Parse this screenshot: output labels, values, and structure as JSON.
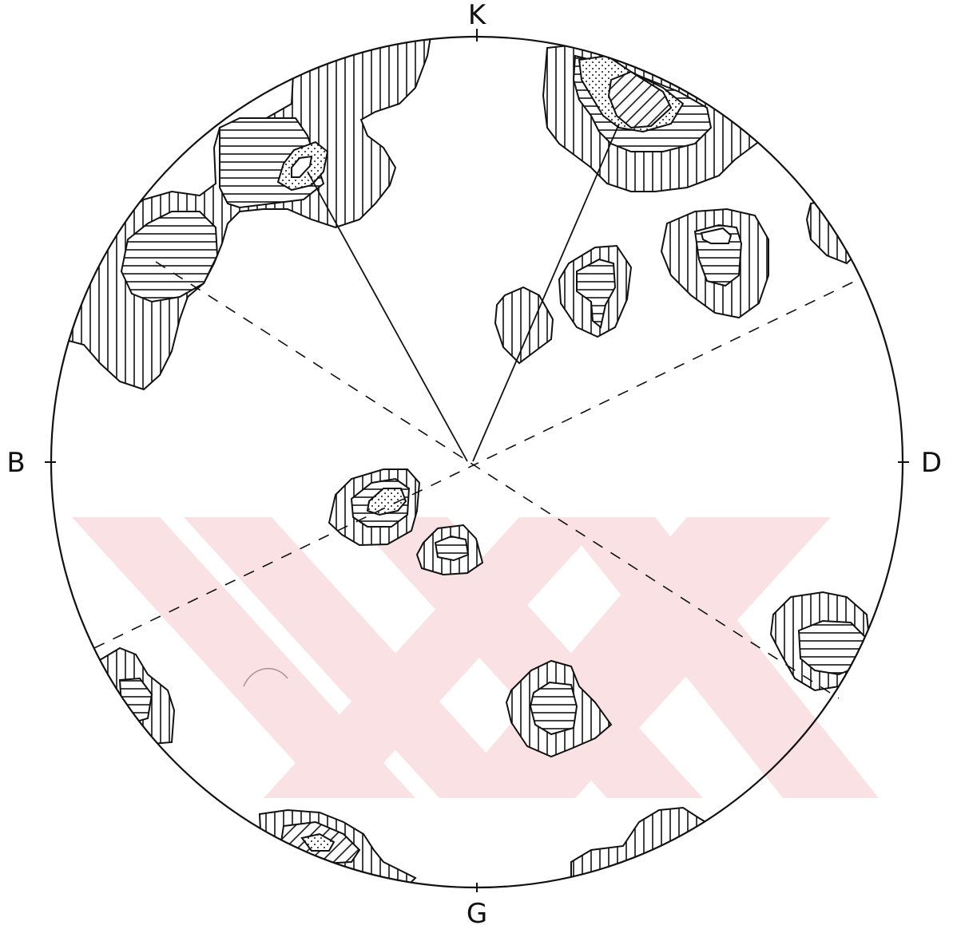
{
  "figure": {
    "axis_labels": {
      "top": "K",
      "bottom": "G",
      "left": "B",
      "right": "D"
    },
    "colors": {
      "ink": "#111111",
      "watermark": "#f6c9cf",
      "background": "#ffffff"
    },
    "legend_hatching": [
      "vertical-hatch",
      "horizontal-hatch",
      "stipple"
    ],
    "watermark_icon": "crossed-chevrons-watermark"
  }
}
